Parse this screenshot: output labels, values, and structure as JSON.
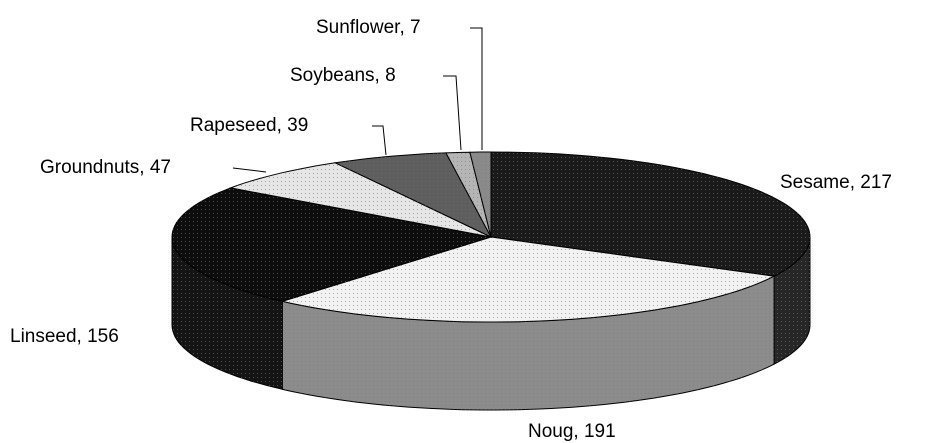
{
  "chart_data": {
    "type": "pie3d",
    "values": [
      217,
      191,
      156,
      47,
      39,
      8,
      7
    ],
    "value_labels": [
      "Sesame, 217",
      "Noug, 191",
      "Linseed, 156",
      "Groundnuts, 47",
      "Rapeseed, 39",
      "Soybeans, 8",
      "Sunflower, 7"
    ],
    "colors": [
      "#1a1a1a",
      "#f2f2f2",
      "#0d0d0d",
      "#e6e6e6",
      "#5e5e5e",
      "#b5b5b5",
      "#8a8a8a"
    ],
    "side_colors": [
      "#262626",
      "#8c8c8c",
      "#141414",
      "#bdbdbd",
      "#4a4a4a",
      "#999999",
      "#707070"
    ]
  }
}
